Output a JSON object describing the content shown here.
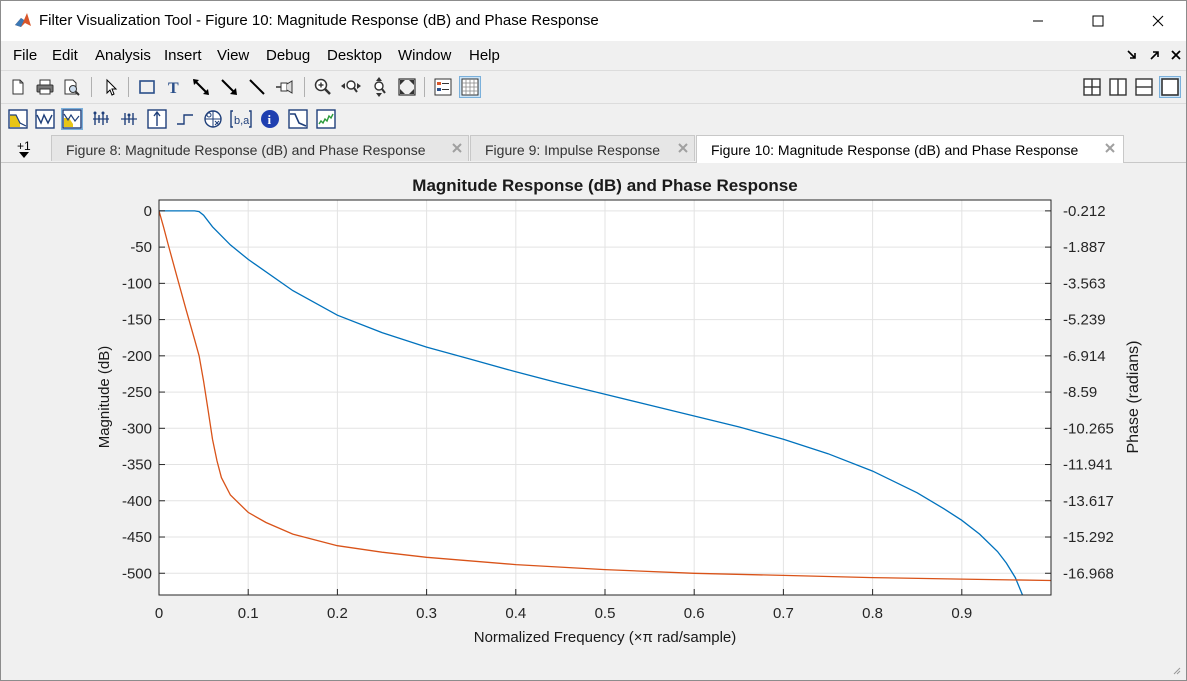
{
  "window": {
    "title": "Filter Visualization Tool - Figure 10: Magnitude Response (dB) and Phase Response"
  },
  "menu": [
    "File",
    "Edit",
    "Analysis",
    "Insert",
    "View",
    "Debug",
    "Desktop",
    "Window",
    "Help"
  ],
  "toolbar1": [
    "new-figure-icon",
    "print-icon",
    "print-preview-icon",
    "edit-plot-icon",
    "insert-rectangle-icon",
    "insert-text-icon",
    "insert-double-arrow-icon",
    "insert-arrow-icon",
    "insert-line-icon",
    "pin-icon",
    "zoom-in-icon",
    "zoom-x-icon",
    "zoom-y-icon",
    "full-view-icon",
    "legend-icon",
    "grid-icon",
    "tile-2x2-icon",
    "tile-vertical-icon",
    "tile-horizontal-icon",
    "single-view-icon"
  ],
  "toolbar2": [
    "magnitude-response-icon",
    "phase-response-icon",
    "magnitude-phase-icon",
    "group-delay-icon",
    "phase-delay-icon",
    "impulse-response-icon",
    "step-response-icon",
    "pole-zero-icon",
    "filter-coefficients-icon",
    "filter-info-icon",
    "magnitude-estimate-icon",
    "round-off-noise-icon"
  ],
  "tabs": {
    "menu_label": "+1",
    "items": [
      {
        "label": "Figure 8: Magnitude Response (dB) and Phase Response",
        "active": false
      },
      {
        "label": "Figure 9: Impulse Response",
        "active": false
      },
      {
        "label": "Figure 10: Magnitude Response (dB) and Phase Response",
        "active": true
      }
    ]
  },
  "chart_data": {
    "type": "line",
    "title": "Magnitude Response (dB) and Phase Response",
    "xlabel": "Normalized Frequency (×π rad/sample)",
    "ylabel": "Magnitude (dB)",
    "ylabel_right": "Phase (radians)",
    "xlim": [
      0,
      1
    ],
    "ylim": [
      -530,
      15
    ],
    "xticks": [
      "0",
      "0.1",
      "0.2",
      "0.3",
      "0.4",
      "0.5",
      "0.6",
      "0.7",
      "0.8",
      "0.9"
    ],
    "yticks_left": [
      "0",
      "-50",
      "-100",
      "-150",
      "-200",
      "-250",
      "-300",
      "-350",
      "-400",
      "-450",
      "-500"
    ],
    "yticks_right": [
      "-0.212",
      "-1.887",
      "-3.563",
      "-5.239",
      "-6.914",
      "-8.59",
      "-10.265",
      "-11.941",
      "-13.617",
      "-15.292",
      "-16.968"
    ],
    "grid": true,
    "series": [
      {
        "color": "#0072bd",
        "x": [
          0,
          0.02,
          0.04,
          0.045,
          0.05,
          0.06,
          0.08,
          0.1,
          0.15,
          0.2,
          0.25,
          0.3,
          0.35,
          0.4,
          0.45,
          0.5,
          0.55,
          0.6,
          0.65,
          0.7,
          0.75,
          0.8,
          0.85,
          0.88,
          0.9,
          0.92,
          0.94,
          0.95,
          0.96,
          0.968
        ],
        "y": [
          0,
          0,
          0,
          -1,
          -6,
          -22,
          -47,
          -67,
          -110,
          -144,
          -168,
          -188,
          -205,
          -222,
          -238,
          -253,
          -268,
          -283,
          -298,
          -315,
          -335,
          -359,
          -389,
          -411,
          -427,
          -446,
          -470,
          -486,
          -506,
          -530
        ]
      },
      {
        "color": "#d95319",
        "x": [
          0,
          0.005,
          0.01,
          0.02,
          0.03,
          0.04,
          0.045,
          0.05,
          0.055,
          0.06,
          0.065,
          0.07,
          0.08,
          0.1,
          0.12,
          0.15,
          0.2,
          0.25,
          0.3,
          0.4,
          0.5,
          0.6,
          0.7,
          0.8,
          0.9,
          1.0
        ],
        "y": [
          0,
          -22,
          -45,
          -90,
          -135,
          -178,
          -200,
          -235,
          -275,
          -315,
          -345,
          -368,
          -392,
          -416,
          -430,
          -446,
          -462,
          -471,
          -478,
          -488,
          -495,
          -500,
          -503,
          -506,
          -508,
          -510
        ]
      }
    ]
  }
}
